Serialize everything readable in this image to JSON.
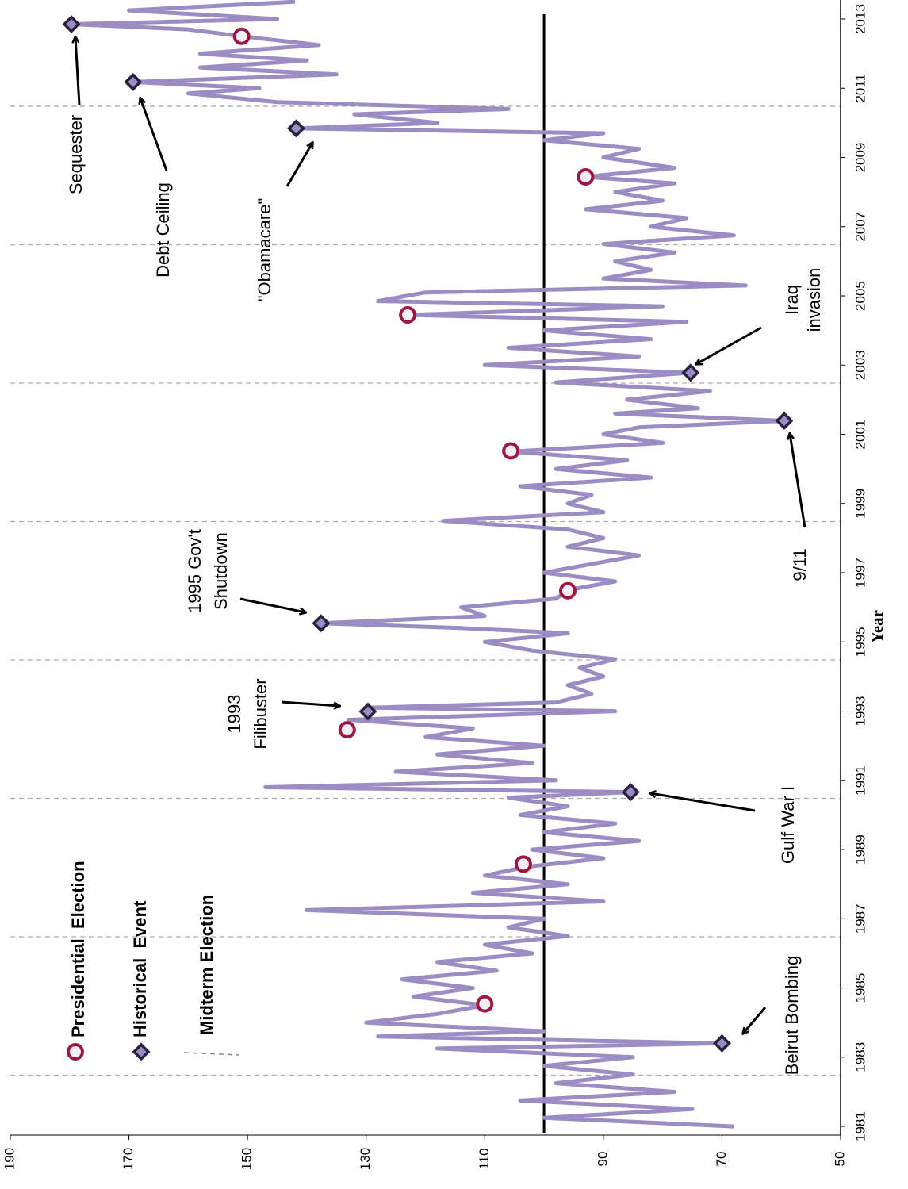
{
  "chart_data": {
    "type": "line",
    "orientation": "rotated",
    "xlabel": "Year",
    "xlim": [
      1980.75,
      2013.55
    ],
    "xticks": [
      1981,
      1983,
      1985,
      1987,
      1989,
      1991,
      1993,
      1995,
      1997,
      1999,
      2001,
      2003,
      2005,
      2007,
      2009,
      2011,
      2013
    ],
    "ylim": [
      50,
      190
    ],
    "yticks": [
      50,
      70,
      90,
      110,
      130,
      150,
      170,
      190
    ],
    "reference_value": 100,
    "color": "#9b8dc4",
    "x": [
      1981.0,
      1981.25,
      1981.5,
      1981.75,
      1982.0,
      1982.25,
      1982.5,
      1982.75,
      1983.0,
      1983.25,
      1983.4,
      1983.6,
      1983.75,
      1984.0,
      1984.25,
      1984.5,
      1984.75,
      1985.0,
      1985.25,
      1985.5,
      1985.75,
      1986.0,
      1986.25,
      1986.5,
      1986.75,
      1987.0,
      1987.25,
      1987.5,
      1987.75,
      1988.0,
      1988.25,
      1988.5,
      1988.75,
      1989.0,
      1989.25,
      1989.5,
      1989.75,
      1990.0,
      1990.25,
      1990.5,
      1990.66,
      1990.8,
      1991.0,
      1991.25,
      1991.5,
      1991.75,
      1992.0,
      1992.25,
      1992.5,
      1992.75,
      1993.0,
      1993.1,
      1993.25,
      1993.5,
      1993.75,
      1994.0,
      1994.25,
      1994.5,
      1994.75,
      1995.0,
      1995.25,
      1995.4,
      1995.54,
      1995.75,
      1996.0,
      1996.25,
      1996.5,
      1996.75,
      1997.0,
      1997.25,
      1997.5,
      1997.75,
      1998.0,
      1998.25,
      1998.5,
      1998.75,
      1999.0,
      1999.25,
      1999.5,
      1999.75,
      2000.0,
      2000.25,
      2000.5,
      2000.75,
      2001.0,
      2001.2,
      2001.39,
      2001.6,
      2001.75,
      2002.0,
      2002.25,
      2002.5,
      2002.78,
      2003.0,
      2003.25,
      2003.5,
      2003.75,
      2004.0,
      2004.25,
      2004.45,
      2004.7,
      2004.85,
      2005.1,
      2005.3,
      2005.5,
      2005.75,
      2006.0,
      2006.25,
      2006.5,
      2006.75,
      2007.0,
      2007.25,
      2007.5,
      2007.75,
      2008.0,
      2008.25,
      2008.44,
      2008.7,
      2009.0,
      2009.25,
      2009.5,
      2009.7,
      2009.84,
      2010.0,
      2010.25,
      2010.4,
      2010.6,
      2010.85,
      2011.0,
      2011.18,
      2011.4,
      2011.6,
      2011.8,
      2012.0,
      2012.25,
      2012.5,
      2012.7,
      2012.85,
      2013.0,
      2013.25,
      2013.5
    ],
    "values": [
      68,
      100,
      75,
      104,
      78,
      98,
      85,
      100,
      85,
      118,
      70,
      128,
      100,
      130,
      118,
      110,
      122,
      112,
      124,
      108,
      118,
      102,
      110,
      96,
      106,
      100,
      140,
      90,
      112,
      96,
      110,
      103,
      90,
      102,
      84,
      100,
      88,
      104,
      96,
      106,
      85.4,
      147,
      98,
      125,
      102,
      118,
      100,
      120,
      112,
      133,
      88,
      129.7,
      98,
      92,
      96,
      90,
      94,
      88,
      102,
      110,
      96,
      114,
      137.6,
      110,
      114,
      98,
      96,
      88,
      100,
      92,
      84,
      96,
      90,
      96,
      117,
      90,
      96,
      92,
      104,
      82,
      98,
      86,
      105.6,
      80,
      90,
      84,
      59.5,
      88,
      74,
      86,
      72,
      98,
      75.3,
      110,
      84,
      106,
      82,
      100,
      76,
      123,
      80,
      128,
      120,
      66,
      90,
      82,
      88,
      78,
      90,
      68,
      82,
      76,
      93,
      80,
      88,
      78,
      93,
      78,
      90,
      84,
      100,
      90,
      141.8,
      118,
      132,
      106,
      145,
      160,
      148,
      169.3,
      135,
      158,
      140,
      158,
      138,
      151,
      160,
      179.7,
      145,
      170,
      142
    ],
    "markers": [
      {
        "name": "Presidential  Election",
        "color": "#a0163f",
        "x": [
          1984.54,
          1988.58,
          1992.46,
          1996.48,
          2000.52,
          2004.45,
          2008.44,
          2012.5
        ],
        "values": [
          110,
          103.5,
          133.2,
          96,
          105.6,
          123,
          93,
          151
        ]
      },
      {
        "name": "Historical  Event",
        "color": "#2a2040",
        "x": [
          1983.4,
          1990.66,
          1992.99,
          1995.54,
          2001.39,
          2002.78,
          2009.84,
          2011.18,
          2012.85
        ],
        "values": [
          70,
          85.4,
          129.7,
          137.6,
          59.5,
          75.3,
          141.8,
          169.3,
          179.7
        ],
        "labels": [
          [
            "Beirut Bombing"
          ],
          [
            "Gulf War I"
          ],
          [
            "1993",
            "Filibuster"
          ],
          [
            "1995 Gov't",
            "Shutdown"
          ],
          [
            "9/11"
          ],
          [
            "Iraq",
            "invasion"
          ],
          [
            "\"Obamacare\""
          ],
          [
            "Debt Ceiling"
          ],
          [
            "Sequester"
          ]
        ]
      }
    ],
    "midterms": {
      "name": "Midterm Election",
      "x": [
        1982.48,
        1986.48,
        1990.48,
        1994.48,
        1998.48,
        2002.48,
        2006.48,
        2010.48
      ]
    }
  }
}
